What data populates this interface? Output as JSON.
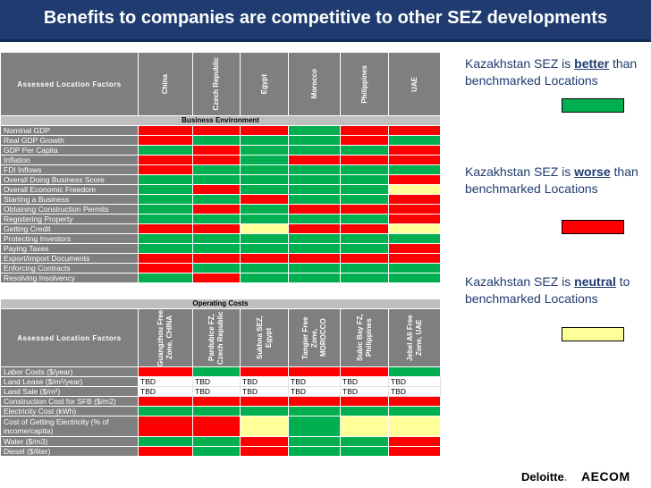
{
  "title": "Benefits to companies are competitive to other SEZ developments",
  "colors": {
    "better": "#00b050",
    "worse": "#ff0000",
    "neutral": "#ffff99"
  },
  "table1": {
    "header_label": "Assessed Location Factors",
    "columns": [
      "China",
      "Czech Republic",
      "Egypt",
      "Morocco",
      "Philippines",
      "UAE"
    ],
    "section": "Business Environment",
    "rows": [
      {
        "label": "Nominal GDP",
        "cells": [
          "r",
          "r",
          "r",
          "g",
          "r",
          "r"
        ]
      },
      {
        "label": "Real GDP Growth",
        "cells": [
          "r",
          "g",
          "g",
          "g",
          "r",
          "g"
        ]
      },
      {
        "label": "GDP Per Capita",
        "cells": [
          "g",
          "r",
          "g",
          "g",
          "g",
          "r"
        ]
      },
      {
        "label": "Inflation",
        "cells": [
          "r",
          "r",
          "g",
          "r",
          "r",
          "r"
        ]
      },
      {
        "label": "FDI Inflows",
        "cells": [
          "r",
          "g",
          "g",
          "g",
          "g",
          "g"
        ]
      },
      {
        "label": "Overall Doing Business Score",
        "cells": [
          "g",
          "g",
          "g",
          "g",
          "g",
          "r"
        ]
      },
      {
        "label": "Overall Economic Freedom",
        "cells": [
          "g",
          "r",
          "g",
          "g",
          "g",
          "y"
        ]
      },
      {
        "label": "Starting a Business",
        "cells": [
          "g",
          "g",
          "r",
          "g",
          "g",
          "r"
        ]
      },
      {
        "label": "Obtaining Construction Permits",
        "cells": [
          "g",
          "r",
          "g",
          "r",
          "r",
          "r"
        ]
      },
      {
        "label": "Registering Property",
        "cells": [
          "g",
          "g",
          "g",
          "g",
          "g",
          "r"
        ]
      },
      {
        "label": "Getting Credit",
        "cells": [
          "r",
          "r",
          "y",
          "r",
          "r",
          "y"
        ]
      },
      {
        "label": "Protecting Investors",
        "cells": [
          "g",
          "g",
          "g",
          "g",
          "g",
          "g"
        ]
      },
      {
        "label": "Paying Taxes",
        "cells": [
          "g",
          "g",
          "g",
          "g",
          "g",
          "r"
        ]
      },
      {
        "label": "Export/Import Documents",
        "cells": [
          "r",
          "r",
          "r",
          "r",
          "r",
          "r"
        ]
      },
      {
        "label": "Enforcing Contracts",
        "cells": [
          "r",
          "g",
          "g",
          "g",
          "g",
          "g"
        ]
      },
      {
        "label": "Resolving Insolvency",
        "cells": [
          "g",
          "r",
          "g",
          "g",
          "g",
          "g"
        ]
      }
    ]
  },
  "table2": {
    "section": "Operating Costs",
    "header_label": "Assessed Location Factors",
    "columns": [
      "Guangzhou Free Zone, CHINA",
      "Pardubice FZ, Czech Republic",
      "Sukhna SEZ, Egypt",
      "Tangier Free Zone, MOROCCO",
      "Subic Bay FZ, Philippines",
      "Jebel Ali Free Zone, UAE"
    ],
    "rows": [
      {
        "label": "Labor Costs ($/year)",
        "cells": [
          "r",
          "g",
          "r",
          "r",
          "r",
          "g"
        ]
      },
      {
        "label": "Land Lease ($/m²/year)",
        "cells": [
          "TBD",
          "TBD",
          "TBD",
          "TBD",
          "TBD",
          "TBD"
        ]
      },
      {
        "label": "Land Sale ($/m²)",
        "cells": [
          "TBD",
          "TBD",
          "TBD",
          "TBD",
          "TBD",
          "TBD"
        ]
      },
      {
        "label": "Construction Cost for SFB ($/m2)",
        "cells": [
          "r",
          "r",
          "r",
          "r",
          "r",
          "r"
        ]
      },
      {
        "label": "Electricity Cost (kWh)",
        "cells": [
          "g",
          "g",
          "g",
          "g",
          "g",
          "g"
        ]
      },
      {
        "label": "Cost of Getting Electricity (% of income/capita)",
        "cells": [
          "r",
          "r",
          "y",
          "g",
          "y",
          "y"
        ],
        "tall": true
      },
      {
        "label": "Water ($/m3)",
        "cells": [
          "g",
          "g",
          "r",
          "g",
          "g",
          "r"
        ]
      },
      {
        "label": "Diesel ($/liter)",
        "cells": [
          "r",
          "g",
          "r",
          "g",
          "g",
          "r"
        ]
      }
    ]
  },
  "legend": {
    "better": {
      "pre": "Kazakhstan SEZ is ",
      "key": "better",
      "post": " than benchmarked Locations"
    },
    "worse": {
      "pre": "Kazakhstan SEZ is ",
      "key": "worse",
      "post": " than benchmarked Locations"
    },
    "neutral": {
      "pre": "Kazakhstan SEZ is ",
      "key": "neutral",
      "post": " to benchmarked Locations"
    }
  },
  "logos": {
    "deloitte": "Deloitte",
    "deloitte_dot": ".",
    "aecom": "AECOM"
  }
}
